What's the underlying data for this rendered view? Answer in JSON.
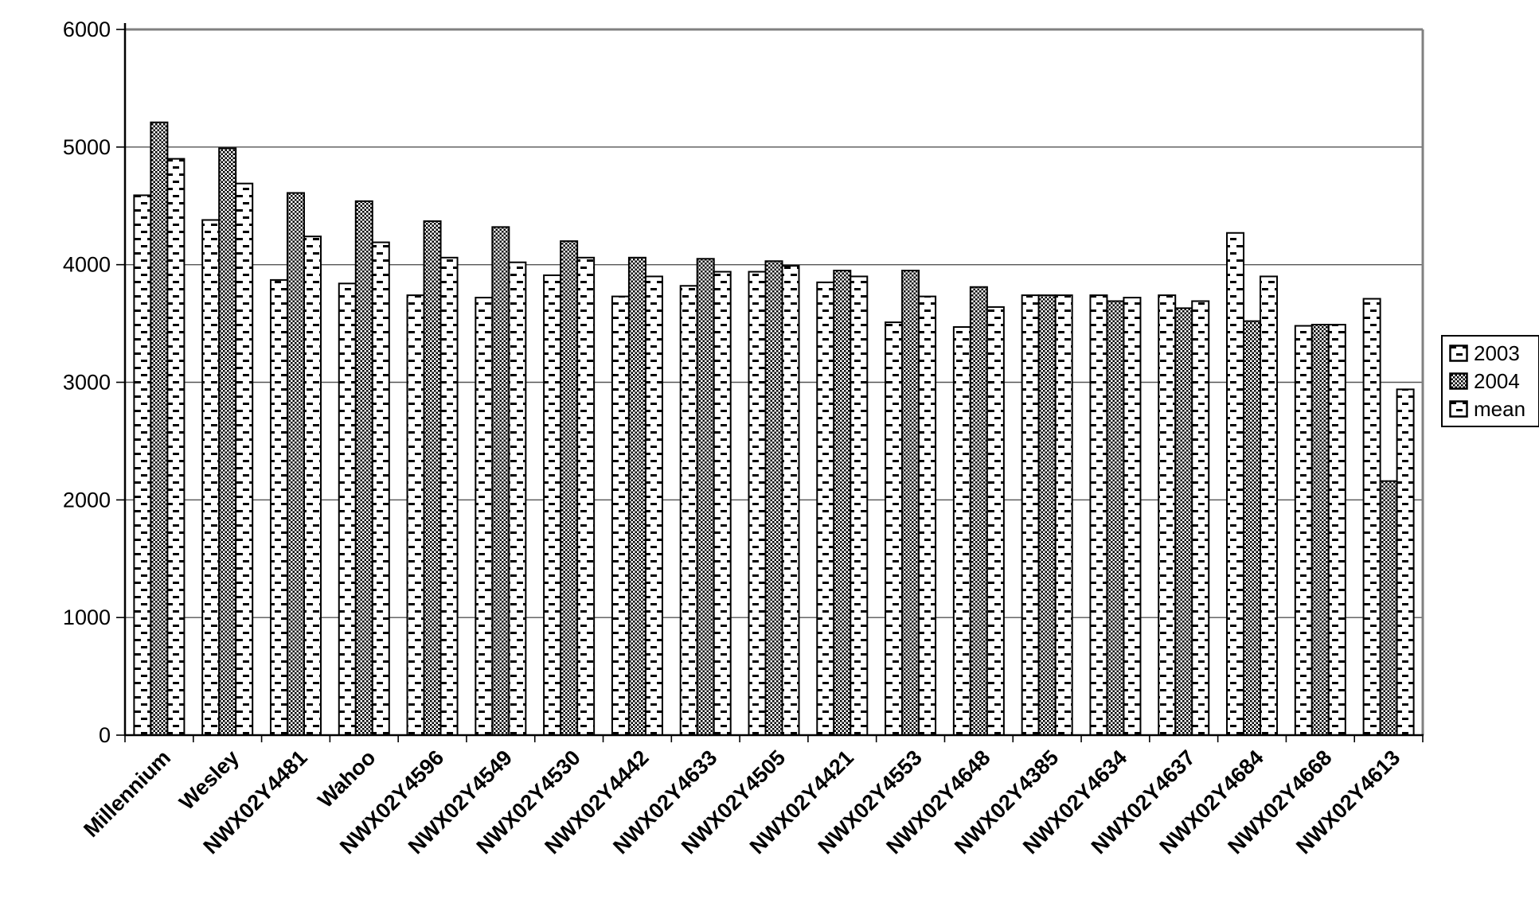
{
  "chart_data": {
    "type": "bar",
    "title": "",
    "xlabel": "",
    "ylabel": "",
    "grid": "horizontal",
    "legend_position": "right",
    "ylim": [
      0,
      6000
    ],
    "yticks": [
      0,
      1000,
      2000,
      3000,
      4000,
      5000,
      6000
    ],
    "categories": [
      "Millennium",
      "Wesley",
      "NWX02Y4481",
      "Wahoo",
      "NWX02Y4596",
      "NWX02Y4549",
      "NWX02Y4530",
      "NWX02Y4442",
      "NWX02Y4633",
      "NWX02Y4505",
      "NWX02Y4421",
      "NWX02Y4553",
      "NWX02Y4648",
      "NWX02Y4385",
      "NWX02Y4634",
      "NWX02Y4637",
      "NWX02Y4684",
      "NWX02Y4668",
      "NWX02Y4613"
    ],
    "series": [
      {
        "name": "2003",
        "pattern": "dash",
        "values": [
          4590,
          4380,
          3870,
          3840,
          3740,
          3720,
          3910,
          3730,
          3820,
          3940,
          3850,
          3510,
          3470,
          3740,
          3740,
          3740,
          4270,
          3480,
          3710
        ]
      },
      {
        "name": "2004",
        "pattern": "checker",
        "values": [
          5210,
          4990,
          4610,
          4540,
          4370,
          4320,
          4200,
          4060,
          4050,
          4030,
          3950,
          3950,
          3810,
          3740,
          3690,
          3630,
          3520,
          3490,
          2160
        ]
      },
      {
        "name": "mean",
        "pattern": "dash",
        "values": [
          4900,
          4690,
          4240,
          4190,
          4060,
          4020,
          4060,
          3900,
          3940,
          3990,
          3900,
          3730,
          3640,
          3740,
          3720,
          3690,
          3900,
          3490,
          2940
        ]
      }
    ],
    "colors": {
      "bar_fill": "#ffffff",
      "bar_stroke": "#000000",
      "pattern_ink": "#000000",
      "gridline": "#555555",
      "plot_border": "#808080",
      "axis": "#000000",
      "background": "#ffffff"
    }
  }
}
